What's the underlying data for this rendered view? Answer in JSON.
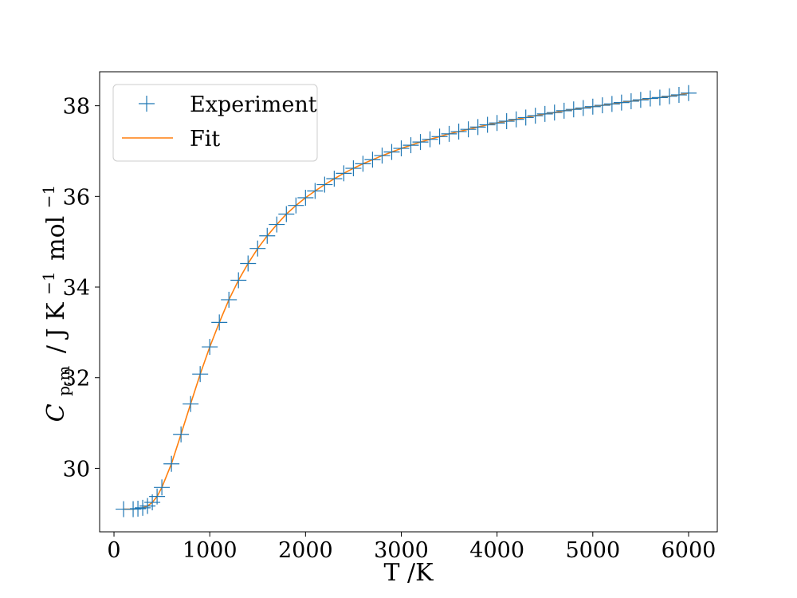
{
  "chart_data": {
    "type": "line",
    "title": "",
    "xlabel": "T /K",
    "ylabel": {
      "symbol": "C",
      "subscript": "p,m",
      "units_prefix": "/ J K",
      "exp1": "−1",
      "units_mid": "mol",
      "exp2": "−1"
    },
    "xlim": [
      -150,
      6300
    ],
    "ylim": [
      28.6,
      38.75
    ],
    "xticks": [
      0,
      1000,
      2000,
      3000,
      4000,
      5000,
      6000
    ],
    "yticks": [
      30,
      32,
      34,
      36,
      38
    ],
    "grid": false,
    "legend_position": "top-left",
    "series": [
      {
        "name": "Experiment",
        "style": "markers",
        "marker": "plus",
        "color": "#1f77b4",
        "x": [
          100,
          200,
          250,
          300,
          350,
          400,
          450,
          500,
          600,
          700,
          800,
          900,
          1000,
          1100,
          1200,
          1300,
          1400,
          1500,
          1600,
          1700,
          1800,
          1900,
          2000,
          2100,
          2200,
          2300,
          2400,
          2500,
          2600,
          2700,
          2800,
          2900,
          3000,
          3100,
          3200,
          3300,
          3400,
          3500,
          3600,
          3700,
          3800,
          3900,
          4000,
          4100,
          4200,
          4300,
          4400,
          4500,
          4600,
          4700,
          4800,
          4900,
          5000,
          5100,
          5200,
          5300,
          5400,
          5500,
          5600,
          5700,
          5800,
          5900,
          6000
        ],
        "y": [
          29.1,
          29.1,
          29.11,
          29.13,
          29.17,
          29.25,
          29.38,
          29.58,
          30.1,
          30.75,
          31.42,
          32.08,
          32.68,
          33.22,
          33.72,
          34.15,
          34.52,
          34.85,
          35.13,
          35.38,
          35.61,
          35.8,
          35.97,
          36.12,
          36.26,
          36.39,
          36.51,
          36.62,
          36.72,
          36.81,
          36.9,
          36.98,
          37.06,
          37.13,
          37.2,
          37.26,
          37.32,
          37.38,
          37.43,
          37.48,
          37.53,
          37.58,
          37.62,
          37.66,
          37.7,
          37.74,
          37.78,
          37.82,
          37.85,
          37.89,
          37.92,
          37.95,
          37.98,
          38.01,
          38.04,
          38.07,
          38.1,
          38.13,
          38.16,
          38.18,
          38.21,
          38.24,
          38.28
        ]
      },
      {
        "name": "Fit",
        "style": "line",
        "color": "#ff7f0e",
        "x": [
          100,
          200,
          250,
          300,
          350,
          400,
          450,
          500,
          600,
          700,
          800,
          900,
          1000,
          1100,
          1200,
          1300,
          1400,
          1500,
          1600,
          1700,
          1800,
          1900,
          2000,
          2100,
          2200,
          2300,
          2400,
          2500,
          2600,
          2700,
          2800,
          2900,
          3000,
          3100,
          3200,
          3300,
          3400,
          3500,
          3600,
          3700,
          3800,
          3900,
          4000,
          4100,
          4200,
          4300,
          4400,
          4500,
          4600,
          4700,
          4800,
          4900,
          5000,
          5100,
          5200,
          5300,
          5400,
          5500,
          5600,
          5700,
          5800,
          5900,
          6000
        ],
        "y": [
          29.1,
          29.1,
          29.11,
          29.13,
          29.17,
          29.25,
          29.38,
          29.58,
          30.1,
          30.75,
          31.42,
          32.08,
          32.68,
          33.22,
          33.72,
          34.15,
          34.52,
          34.85,
          35.13,
          35.38,
          35.61,
          35.8,
          35.97,
          36.12,
          36.26,
          36.39,
          36.51,
          36.62,
          36.72,
          36.81,
          36.9,
          36.98,
          37.06,
          37.13,
          37.2,
          37.26,
          37.32,
          37.38,
          37.43,
          37.48,
          37.53,
          37.58,
          37.62,
          37.66,
          37.7,
          37.74,
          37.78,
          37.82,
          37.85,
          37.89,
          37.92,
          37.95,
          37.98,
          38.01,
          38.04,
          38.07,
          38.1,
          38.13,
          38.16,
          38.18,
          38.21,
          38.24,
          38.28
        ]
      }
    ]
  }
}
